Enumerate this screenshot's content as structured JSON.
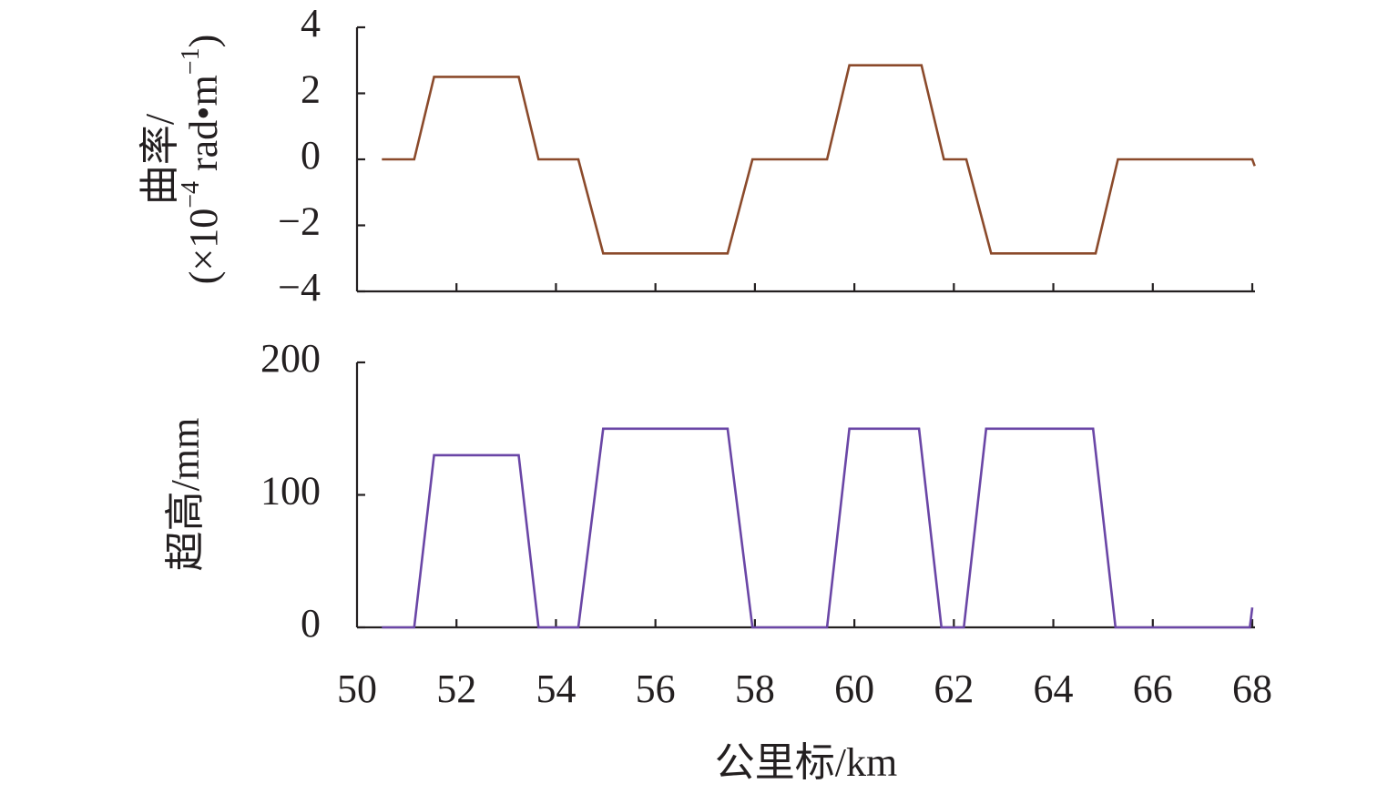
{
  "chart_data": [
    {
      "type": "line",
      "ylabel_line1": "曲率/",
      "ylabel_line2_prefix": "(×10",
      "ylabel_line2_exp": "−4",
      "ylabel_line2_mid": " rad•m",
      "ylabel_line2_exp2": "−1",
      "ylabel_line2_suffix": ")",
      "ylim": [
        -4,
        4
      ],
      "yticks": [
        -4,
        -2,
        0,
        2,
        4
      ],
      "ytick_labels": [
        "−4",
        "−2",
        "0",
        "2",
        "4"
      ],
      "color": "#8b4a2b",
      "series": [
        {
          "x": [
            50.5,
            51.15,
            51.55,
            53.25,
            53.65,
            54.45,
            54.95,
            57.45,
            57.95,
            59.45,
            59.9,
            61.35,
            61.8,
            62.25,
            62.75,
            64.85,
            65.3,
            68.0,
            68.05
          ],
          "y": [
            0,
            0,
            2.5,
            2.5,
            0,
            0,
            -2.85,
            -2.85,
            0,
            0,
            2.85,
            2.85,
            0,
            0,
            -2.85,
            -2.85,
            0,
            0,
            -0.2
          ]
        }
      ]
    },
    {
      "type": "line",
      "ylabel": "超高/mm",
      "ylim": [
        0,
        200
      ],
      "yticks": [
        0,
        100,
        200
      ],
      "ytick_labels": [
        "0",
        "100",
        "200"
      ],
      "color": "#6a46a6",
      "series": [
        {
          "x": [
            50.5,
            51.15,
            51.55,
            53.25,
            53.65,
            54.45,
            54.95,
            57.45,
            57.95,
            59.45,
            59.9,
            61.3,
            61.75,
            62.2,
            62.65,
            64.8,
            65.25,
            67.95,
            68.0
          ],
          "y": [
            0,
            0,
            130,
            130,
            0,
            0,
            150,
            150,
            0,
            0,
            150,
            150,
            0,
            0,
            150,
            150,
            0,
            0,
            15
          ]
        }
      ]
    }
  ],
  "x_axis": {
    "xlim": [
      50,
      68
    ],
    "xticks": [
      50,
      52,
      54,
      56,
      58,
      60,
      62,
      64,
      66,
      68
    ],
    "xtick_labels": [
      "50",
      "52",
      "54",
      "56",
      "58",
      "60",
      "62",
      "64",
      "66",
      "68"
    ],
    "xlabel": "公里标/km"
  }
}
